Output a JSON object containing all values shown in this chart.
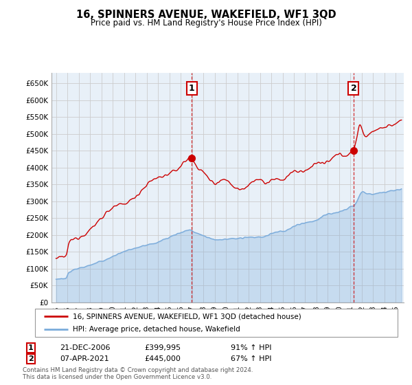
{
  "title": "16, SPINNERS AVENUE, WAKEFIELD, WF1 3QD",
  "subtitle": "Price paid vs. HM Land Registry's House Price Index (HPI)",
  "legend_line1": "16, SPINNERS AVENUE, WAKEFIELD, WF1 3QD (detached house)",
  "legend_line2": "HPI: Average price, detached house, Wakefield",
  "sale1_label": "1",
  "sale1_date": "21-DEC-2006",
  "sale1_price": "£399,995",
  "sale1_hpi": "91% ↑ HPI",
  "sale2_label": "2",
  "sale2_date": "07-APR-2021",
  "sale2_price": "£445,000",
  "sale2_hpi": "67% ↑ HPI",
  "footer1": "Contains HM Land Registry data © Crown copyright and database right 2024.",
  "footer2": "This data is licensed under the Open Government Licence v3.0.",
  "red_color": "#cc0000",
  "blue_color": "#7aabdb",
  "fill_color": "#ddeeff",
  "background_color": "#ffffff",
  "grid_color": "#cccccc",
  "ylim": [
    0,
    680000
  ],
  "yticks": [
    0,
    50000,
    100000,
    150000,
    200000,
    250000,
    300000,
    350000,
    400000,
    450000,
    500000,
    550000,
    600000,
    650000
  ],
  "sale1_year": 2006.97,
  "sale1_value": 399995,
  "sale2_year": 2021.27,
  "sale2_value": 445000
}
